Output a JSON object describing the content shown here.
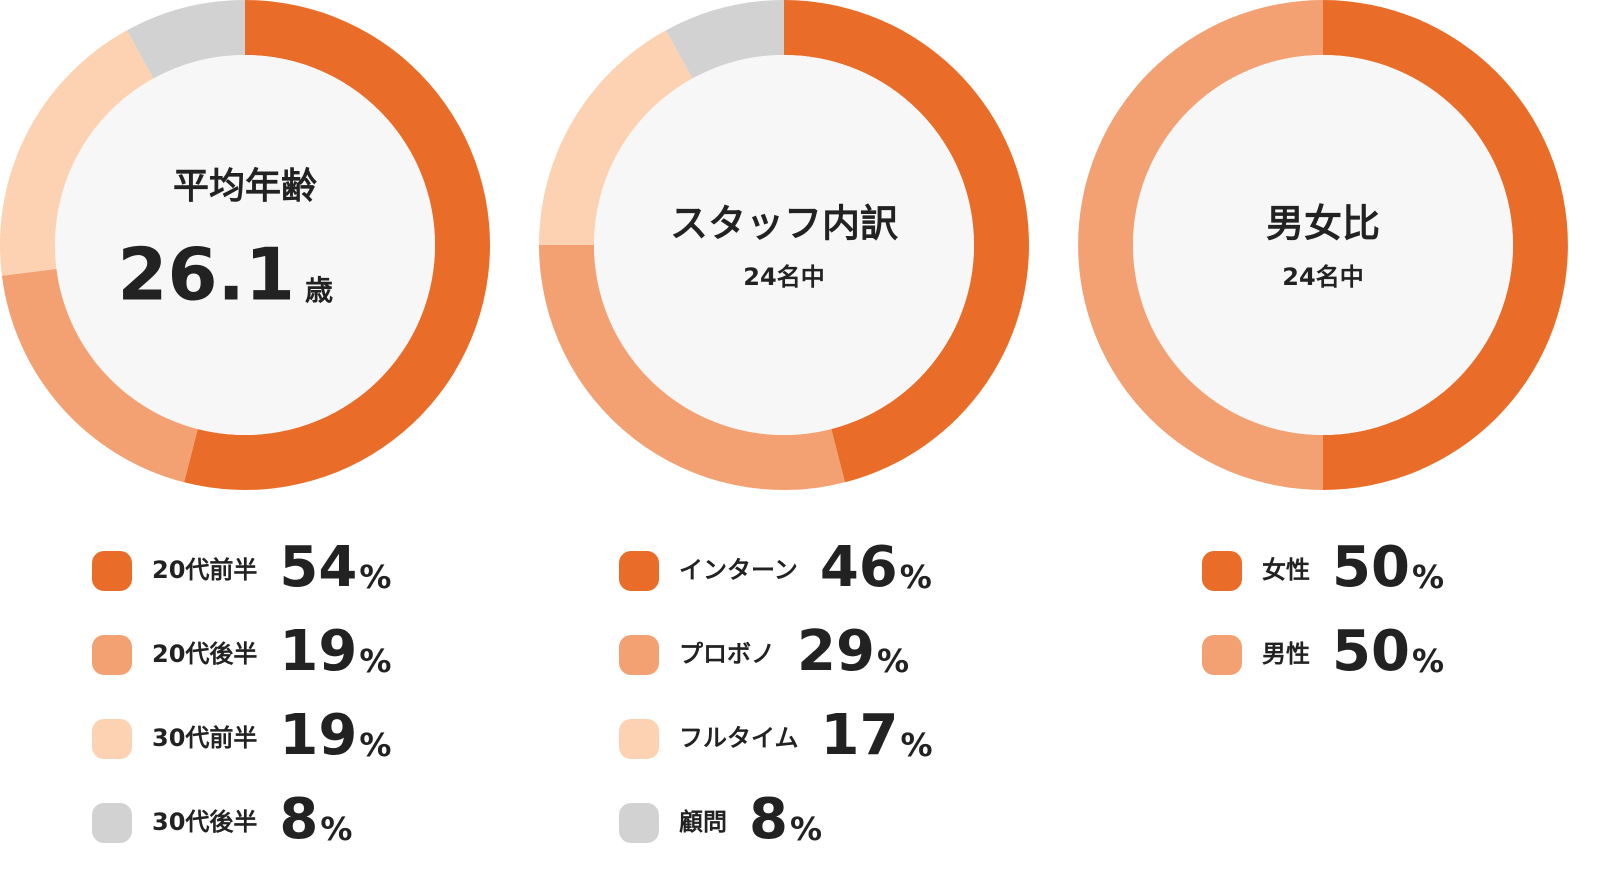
{
  "chart_data": [
    {
      "type": "donut",
      "title": "平均年齢",
      "center_value": 26.1,
      "center_unit": "歳",
      "unit": "%",
      "categories": [
        "20代前半",
        "20代後半",
        "30代前半",
        "30代後半"
      ],
      "values": [
        54,
        19,
        19,
        8
      ],
      "colors": [
        "#e96d28",
        "#f3a173",
        "#fdd2b2",
        "#d2d2d2"
      ]
    },
    {
      "type": "donut",
      "title": "スタッフ内訳",
      "subtitle": "24名中",
      "unit": "%",
      "categories": [
        "インターン",
        "プロボノ",
        "フルタイム",
        "顧問"
      ],
      "values": [
        46,
        29,
        17,
        8
      ],
      "colors": [
        "#e96d28",
        "#f3a173",
        "#fdd2b2",
        "#d2d2d2"
      ]
    },
    {
      "type": "donut",
      "title": "男女比",
      "subtitle": "24名中",
      "unit": "%",
      "categories": [
        "女性",
        "男性"
      ],
      "values": [
        50,
        50
      ],
      "colors": [
        "#e96d28",
        "#f3a173"
      ]
    }
  ]
}
